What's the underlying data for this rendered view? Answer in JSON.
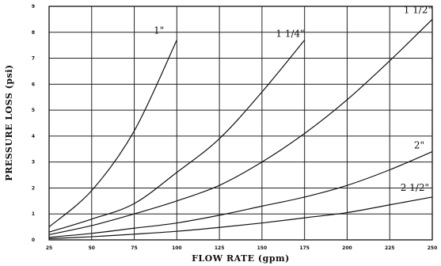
{
  "chart_data": {
    "type": "line",
    "title": "",
    "xlabel": "FLOW RATE (gpm)",
    "ylabel": "PRESSURE LOSS (psi)",
    "xlim": [
      25,
      250
    ],
    "ylim": [
      0,
      9
    ],
    "x_ticks": [
      "25",
      "50",
      "75",
      "100",
      "125",
      "150",
      "175",
      "200",
      "225",
      "250"
    ],
    "y_ticks": [
      "0",
      "1",
      "2",
      "3",
      "4",
      "5",
      "6",
      "7",
      "8",
      "9"
    ],
    "grid": true,
    "series": [
      {
        "name": "1\"",
        "x": [
          25,
          50,
          75,
          100
        ],
        "y": [
          0.5,
          1.9,
          4.2,
          7.7
        ]
      },
      {
        "name": "1 1/4\"",
        "x": [
          25,
          50,
          75,
          100,
          125,
          150,
          175
        ],
        "y": [
          0.3,
          0.8,
          1.4,
          2.6,
          3.9,
          5.7,
          7.7
        ]
      },
      {
        "name": "1 1/2\"",
        "x": [
          25,
          50,
          75,
          100,
          125,
          150,
          175,
          200,
          225,
          250
        ],
        "y": [
          0.2,
          0.55,
          1.0,
          1.5,
          2.1,
          3.0,
          4.1,
          5.4,
          6.9,
          8.5
        ]
      },
      {
        "name": "2\"",
        "x": [
          25,
          50,
          75,
          100,
          125,
          150,
          175,
          200,
          225,
          250
        ],
        "y": [
          0.1,
          0.25,
          0.45,
          0.65,
          0.95,
          1.3,
          1.65,
          2.1,
          2.7,
          3.4
        ]
      },
      {
        "name": "2 1/2\"",
        "x": [
          25,
          50,
          75,
          100,
          125,
          150,
          175,
          200,
          225,
          250
        ],
        "y": [
          0.05,
          0.12,
          0.22,
          0.33,
          0.48,
          0.65,
          0.85,
          1.05,
          1.35,
          1.65
        ]
      }
    ]
  }
}
